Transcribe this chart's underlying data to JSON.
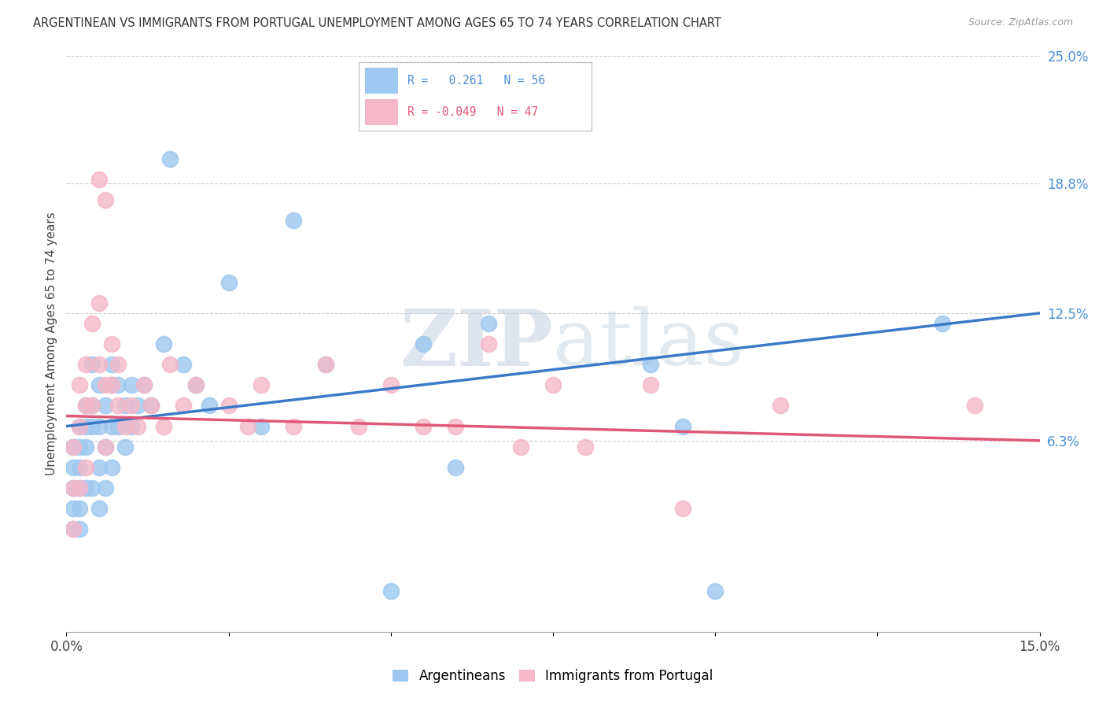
{
  "title": "ARGENTINEAN VS IMMIGRANTS FROM PORTUGAL UNEMPLOYMENT AMONG AGES 65 TO 74 YEARS CORRELATION CHART",
  "source": "Source: ZipAtlas.com",
  "ylabel": "Unemployment Among Ages 65 to 74 years",
  "x_min": 0.0,
  "x_max": 0.15,
  "y_min": -0.03,
  "y_max": 0.25,
  "y_tick_labels_right": [
    "25.0%",
    "18.8%",
    "12.5%",
    "6.3%"
  ],
  "y_tick_values_right": [
    0.25,
    0.188,
    0.125,
    0.063
  ],
  "argentinean_color": "#9ec8f0",
  "portugal_color": "#f5b8c8",
  "argentinean_line_color": "#3a7ac8",
  "portugal_line_color": "#e05878",
  "watermark_color": "#ccd8e8",
  "grid_color": "#cccccc",
  "background_color": "#ffffff",
  "argentinean_R": 0.261,
  "argentinean_N": 56,
  "portugal_R": -0.049,
  "portugal_N": 47,
  "argentinean_x": [
    0.001,
    0.001,
    0.001,
    0.001,
    0.001,
    0.002,
    0.002,
    0.002,
    0.002,
    0.002,
    0.002,
    0.003,
    0.003,
    0.003,
    0.003,
    0.004,
    0.004,
    0.004,
    0.004,
    0.005,
    0.005,
    0.005,
    0.005,
    0.006,
    0.006,
    0.006,
    0.007,
    0.007,
    0.007,
    0.007,
    0.008,
    0.008,
    0.009,
    0.009,
    0.01,
    0.01,
    0.011,
    0.012,
    0.013,
    0.015,
    0.016,
    0.018,
    0.02,
    0.022,
    0.025,
    0.03,
    0.035,
    0.04,
    0.05,
    0.055,
    0.06,
    0.065,
    0.09,
    0.095,
    0.1,
    0.135
  ],
  "argentinean_y": [
    0.04,
    0.06,
    0.05,
    0.03,
    0.02,
    0.07,
    0.06,
    0.05,
    0.04,
    0.03,
    0.02,
    0.08,
    0.07,
    0.06,
    0.04,
    0.1,
    0.08,
    0.07,
    0.04,
    0.09,
    0.07,
    0.05,
    0.03,
    0.08,
    0.06,
    0.04,
    0.1,
    0.09,
    0.07,
    0.05,
    0.09,
    0.07,
    0.08,
    0.06,
    0.09,
    0.07,
    0.08,
    0.09,
    0.08,
    0.11,
    0.2,
    0.1,
    0.09,
    0.08,
    0.14,
    0.07,
    0.17,
    0.1,
    -0.01,
    0.11,
    0.05,
    0.12,
    0.1,
    0.07,
    -0.01,
    0.12
  ],
  "portugal_x": [
    0.001,
    0.001,
    0.001,
    0.002,
    0.002,
    0.002,
    0.003,
    0.003,
    0.003,
    0.004,
    0.004,
    0.005,
    0.005,
    0.005,
    0.006,
    0.006,
    0.006,
    0.007,
    0.007,
    0.008,
    0.008,
    0.009,
    0.01,
    0.011,
    0.012,
    0.013,
    0.015,
    0.016,
    0.018,
    0.02,
    0.025,
    0.028,
    0.03,
    0.035,
    0.04,
    0.045,
    0.05,
    0.055,
    0.06,
    0.065,
    0.07,
    0.075,
    0.08,
    0.09,
    0.095,
    0.11,
    0.14
  ],
  "portugal_y": [
    0.06,
    0.04,
    0.02,
    0.09,
    0.07,
    0.04,
    0.1,
    0.08,
    0.05,
    0.12,
    0.08,
    0.13,
    0.1,
    0.19,
    0.09,
    0.06,
    0.18,
    0.11,
    0.09,
    0.1,
    0.08,
    0.07,
    0.08,
    0.07,
    0.09,
    0.08,
    0.07,
    0.1,
    0.08,
    0.09,
    0.08,
    0.07,
    0.09,
    0.07,
    0.1,
    0.07,
    0.09,
    0.07,
    0.07,
    0.11,
    0.06,
    0.09,
    0.06,
    0.09,
    0.03,
    0.08,
    0.08
  ],
  "x_ticks": [
    0.0,
    0.025,
    0.05,
    0.075,
    0.1,
    0.125,
    0.15
  ],
  "legend_R_line1": "R =   0.261   N = 56",
  "legend_R_line2": "R = -0.049   N = 47"
}
